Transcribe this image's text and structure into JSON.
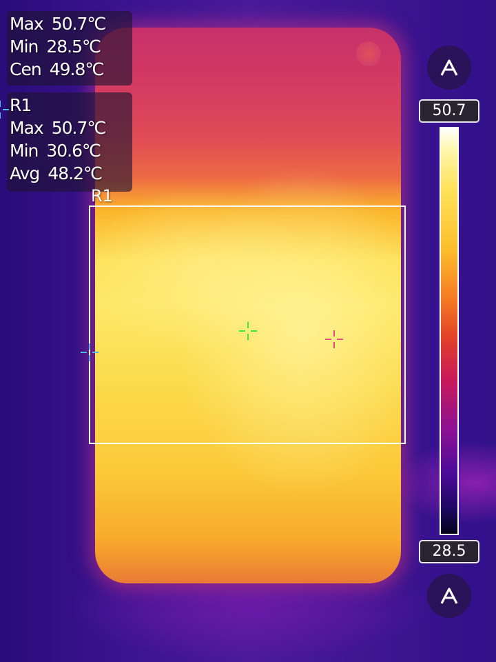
{
  "global_stats": {
    "max": {
      "label": "Max",
      "value": "50.7℃"
    },
    "min": {
      "label": "Min",
      "value": "28.5℃"
    },
    "cen": {
      "label": "Cen",
      "value": "49.8℃"
    }
  },
  "region": {
    "name": "R1",
    "label": "R1",
    "max": {
      "label": "Max",
      "value": "50.7℃"
    },
    "min": {
      "label": "Min",
      "value": "30.6℃"
    },
    "avg": {
      "label": "Avg",
      "value": "48.2℃"
    }
  },
  "color_scale": {
    "max_label": "50.7",
    "min_label": "28.5",
    "palette": "iron",
    "colors": [
      "#ffffff",
      "#fee25a",
      "#f47a24",
      "#c8195a",
      "#4d0b9a",
      "#03021a"
    ]
  },
  "buttons": {
    "top_icon": "auto-range-icon",
    "bottom_icon": "auto-range-icon"
  },
  "markers": {
    "center": {
      "icon": "crosshair-icon",
      "color": "#38e83a"
    },
    "hot": {
      "icon": "crosshair-icon",
      "color": "#e0507a"
    },
    "cold": {
      "icon": "crosshair-icon",
      "color": "#4fb8e8"
    }
  }
}
